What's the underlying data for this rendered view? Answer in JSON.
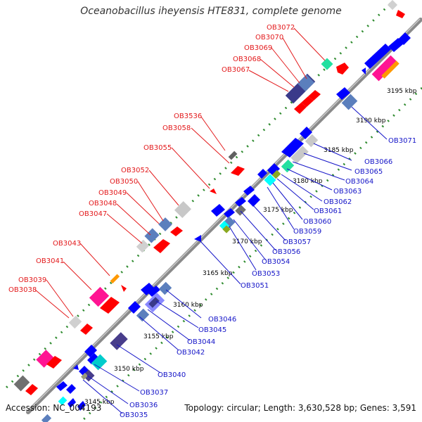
{
  "title": "Oceanobacillus iheyensis HTE831, complete genome",
  "accession": "Accession: NC_004193",
  "topology": "Topology: circular; Length: 3,630,528 bp; Genes: 3,591",
  "colors": {
    "background": "#ffffff",
    "backbone": "#8a8a8a",
    "dots": "#2e8b2e",
    "forward_label": "#e31a1c",
    "reverse_label": "#1414c8",
    "tick_label": "#000000"
  },
  "scale_ticks": [
    "3145 kbp",
    "3150 kbp",
    "3155 kbp",
    "3160 kbp",
    "3165 kbp",
    "3170 kbp",
    "3175 kbp",
    "3180 kbp",
    "3185 kbp",
    "3190 kbp",
    "3195 kbp"
  ],
  "forward_gene_labels": [
    "OB3072",
    "OB3070",
    "OB3069",
    "OB3068",
    "OB3067",
    "OB3536",
    "OB3058",
    "OB3055",
    "OB3052",
    "OB3050",
    "OB3049",
    "OB3048",
    "OB3047",
    "OB3043",
    "OB3041",
    "OB3039",
    "OB3038"
  ],
  "reverse_gene_labels": [
    "OB3071",
    "OB3066",
    "OB3065",
    "OB3064",
    "OB3063",
    "OB3062",
    "OB3061",
    "OB3060",
    "OB3059",
    "OB3057",
    "OB3056",
    "OB3054",
    "OB3053",
    "OB3051",
    "OB3046",
    "OB3045",
    "OB3044",
    "OB3042",
    "OB3040",
    "OB3037",
    "OB3036",
    "OB3035"
  ]
}
